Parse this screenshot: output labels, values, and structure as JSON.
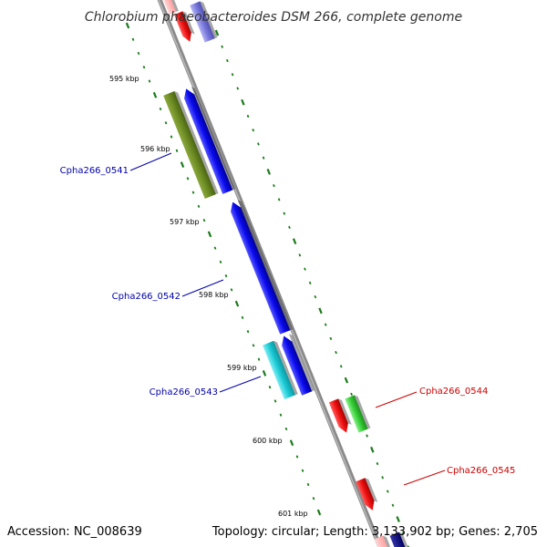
{
  "title": "Chlorobium phaeobacteroides DSM 266, complete genome",
  "footer": {
    "accession": "Accession: NC_008639",
    "summary": "Topology: circular; Length: 3,133,902 bp; Genes: 2,705"
  },
  "kbp_ticks": [
    "595 kbp",
    "596 kbp",
    "597 kbp",
    "598 kbp",
    "599 kbp",
    "600 kbp",
    "601 kbp"
  ],
  "gene_labels": {
    "left": [
      "Cpha266_0541",
      "Cpha266_0542",
      "Cpha266_0543"
    ],
    "right": [
      "Cpha266_0544",
      "Cpha266_0545"
    ]
  },
  "colors": {
    "backbone": "#888888",
    "tick": "#1a7a1a",
    "left_label": "#0000aa",
    "right_label": "#cc0000",
    "gene_blue": "#1010ee",
    "gene_olive": "#6b8a22",
    "gene_cyan": "#19c9d4",
    "gene_red": "#ee1111",
    "gene_green": "#33cc33",
    "gene_lavender": "#7777dd",
    "gene_navy": "#000080"
  }
}
